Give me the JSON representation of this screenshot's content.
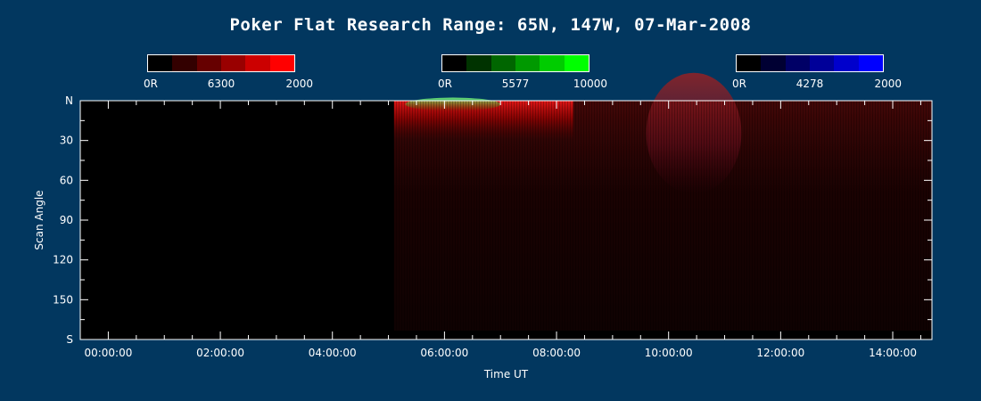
{
  "chart_data": {
    "type": "heatmap",
    "title": "Poker Flat Research Range: 65N, 147W, 07-Mar-2008",
    "xlabel": "Time UT",
    "ylabel": "Scan Angle",
    "x_ticks": [
      "00:00:00",
      "02:00:00",
      "04:00:00",
      "06:00:00",
      "08:00:00",
      "10:00:00",
      "12:00:00",
      "14:00:00"
    ],
    "x_tick_hours": [
      0,
      2,
      4,
      6,
      8,
      10,
      12,
      14
    ],
    "xlim_hours": [
      -0.5,
      14.7
    ],
    "y_ticks": [
      "N",
      "30",
      "60",
      "90",
      "120",
      "150",
      "S"
    ],
    "y_tick_values": [
      0,
      30,
      60,
      90,
      120,
      150,
      180
    ],
    "ylim": [
      0,
      180
    ],
    "data_start_hour": 5.1,
    "data_end_hour": 14.7,
    "colorbars": [
      {
        "channel": "6300",
        "min_label": "0R",
        "mid_label": "6300",
        "max_label": "2000",
        "colors": [
          "#000000",
          "#330000",
          "#660000",
          "#990000",
          "#cc0000",
          "#ff0000"
        ]
      },
      {
        "channel": "5577",
        "min_label": "0R",
        "mid_label": "5577",
        "max_label": "10000",
        "colors": [
          "#000000",
          "#003300",
          "#006600",
          "#009900",
          "#00cc00",
          "#00ff00"
        ]
      },
      {
        "channel": "4278",
        "min_label": "0R",
        "mid_label": "4278",
        "max_label": "2000",
        "colors": [
          "#000000",
          "#000033",
          "#000066",
          "#000099",
          "#0000cc",
          "#0000ff"
        ]
      }
    ],
    "features": [
      {
        "channel": "6300",
        "hour_start": 5.1,
        "hour_end": 8.3,
        "angle_start": 0,
        "angle_end": 30,
        "intensity": "bright"
      },
      {
        "channel": "6300",
        "hour_start": 5.1,
        "hour_end": 14.7,
        "angle_start": 0,
        "angle_end": 180,
        "intensity": "faint"
      },
      {
        "channel": "5577",
        "hour_start": 5.3,
        "hour_end": 7.0,
        "angle_start": 0,
        "angle_end": 5,
        "intensity": "moderate"
      },
      {
        "channel": "6300",
        "hour_start": 9.6,
        "hour_end": 11.3,
        "angle_start": 0,
        "angle_end": 70,
        "intensity": "moderate"
      }
    ]
  },
  "colors": {
    "background": "#02375f",
    "plot_background": "#000000",
    "axis": "#ffffff"
  }
}
